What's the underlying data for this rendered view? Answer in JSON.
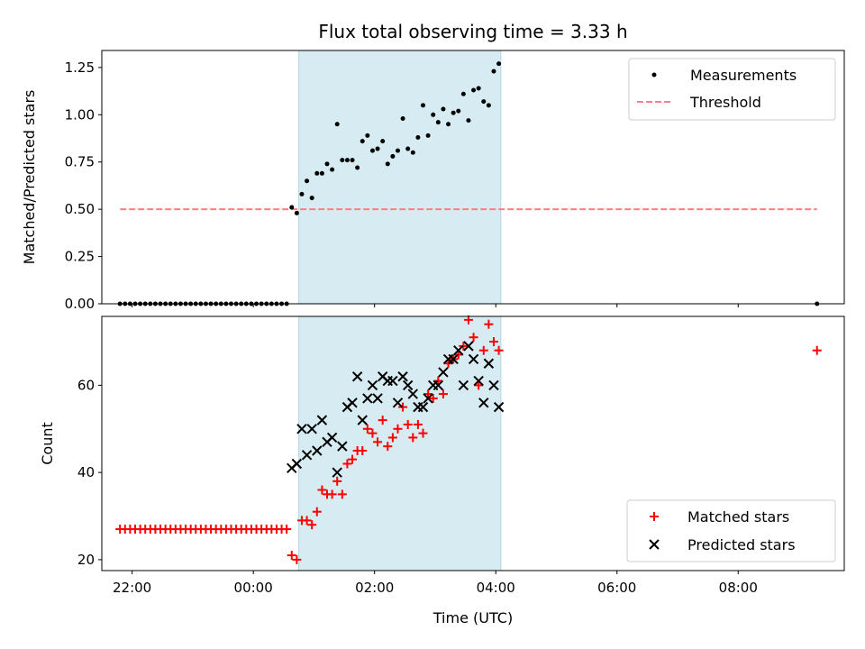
{
  "chart_data": [
    {
      "type": "scatter",
      "title": "Flux total observing time = 3.33 h",
      "xlabel": "",
      "ylabel": "Matched/Predicted stars",
      "xlim": [
        "21:30",
        "09:45"
      ],
      "ylim": [
        0,
        1.34
      ],
      "yticks": [
        0.0,
        0.25,
        0.5,
        0.75,
        1.0,
        1.25
      ],
      "ytick_labels": [
        "0.00",
        "0.25",
        "0.50",
        "0.75",
        "1.00",
        "1.25"
      ],
      "legend_position": "top-right",
      "highlight_span": [
        "00:45",
        "04:05"
      ],
      "series": [
        {
          "name": "Measurements",
          "kind": "scatter",
          "color": "#000000",
          "marker": "dot",
          "x": [
            "21:48",
            "21:53",
            "21:58",
            "22:03",
            "22:08",
            "22:13",
            "22:18",
            "22:23",
            "22:28",
            "22:33",
            "22:38",
            "22:43",
            "22:48",
            "22:53",
            "22:58",
            "23:03",
            "23:08",
            "23:13",
            "23:18",
            "23:23",
            "23:28",
            "23:33",
            "23:38",
            "23:43",
            "23:48",
            "23:53",
            "23:58",
            "00:03",
            "00:08",
            "00:13",
            "00:18",
            "00:23",
            "00:28",
            "00:33",
            "00:38",
            "00:43",
            "00:48",
            "00:53",
            "00:58",
            "01:03",
            "01:08",
            "01:13",
            "01:18",
            "01:23",
            "01:28",
            "01:33",
            "01:38",
            "01:43",
            "01:48",
            "01:53",
            "01:58",
            "02:03",
            "02:08",
            "02:13",
            "02:18",
            "02:23",
            "02:28",
            "02:33",
            "02:38",
            "02:43",
            "02:48",
            "02:53",
            "02:58",
            "03:03",
            "03:08",
            "03:13",
            "03:18",
            "03:23",
            "03:28",
            "03:33",
            "03:38",
            "03:43",
            "03:48",
            "03:53",
            "03:58",
            "04:03",
            "09:18"
          ],
          "y": [
            0,
            0,
            0,
            0,
            0,
            0,
            0,
            0,
            0,
            0,
            0,
            0,
            0,
            0,
            0,
            0,
            0,
            0,
            0,
            0,
            0,
            0,
            0,
            0,
            0,
            0,
            0,
            0,
            0,
            0,
            0,
            0,
            0,
            0,
            0.51,
            0.48,
            0.58,
            0.65,
            0.56,
            0.69,
            0.69,
            0.74,
            0.71,
            0.95,
            0.76,
            0.76,
            0.76,
            0.72,
            0.86,
            0.89,
            0.81,
            0.82,
            0.86,
            0.74,
            0.78,
            0.81,
            0.98,
            0.82,
            0.8,
            0.88,
            1.05,
            0.89,
            1.0,
            0.96,
            1.03,
            0.95,
            1.01,
            1.02,
            1.11,
            0.97,
            1.13,
            1.14,
            1.07,
            1.05,
            1.23,
            1.27,
            0
          ]
        },
        {
          "name": "Threshold",
          "kind": "line",
          "color": "#ff7f7f",
          "style": "dashed",
          "x": [
            "21:48",
            "09:18"
          ],
          "y": [
            0.5,
            0.5
          ]
        }
      ]
    },
    {
      "type": "scatter",
      "title": "",
      "xlabel": "Time (UTC)",
      "ylabel": "Count",
      "xlim": [
        "21:30",
        "09:45"
      ],
      "ylim": [
        17.5,
        75.8
      ],
      "xticks": [
        "22:00",
        "00:00",
        "02:00",
        "04:00",
        "06:00",
        "08:00"
      ],
      "yticks": [
        20,
        40,
        60
      ],
      "ytick_labels": [
        "20",
        "40",
        "60"
      ],
      "legend_position": "bottom-right",
      "highlight_span": [
        "00:45",
        "04:05"
      ],
      "series": [
        {
          "name": "Matched stars",
          "kind": "scatter",
          "color": "#ff0000",
          "marker": "plus",
          "x": [
            "21:48",
            "21:53",
            "21:58",
            "22:03",
            "22:08",
            "22:13",
            "22:18",
            "22:23",
            "22:28",
            "22:33",
            "22:38",
            "22:43",
            "22:48",
            "22:53",
            "22:58",
            "23:03",
            "23:08",
            "23:13",
            "23:18",
            "23:23",
            "23:28",
            "23:33",
            "23:38",
            "23:43",
            "23:48",
            "23:53",
            "23:58",
            "00:03",
            "00:08",
            "00:13",
            "00:18",
            "00:23",
            "00:28",
            "00:33",
            "00:38",
            "00:43",
            "00:48",
            "00:53",
            "00:58",
            "01:03",
            "01:08",
            "01:13",
            "01:18",
            "01:23",
            "01:28",
            "01:33",
            "01:38",
            "01:43",
            "01:48",
            "01:53",
            "01:58",
            "02:03",
            "02:08",
            "02:13",
            "02:18",
            "02:23",
            "02:28",
            "02:33",
            "02:38",
            "02:43",
            "02:48",
            "02:53",
            "02:58",
            "03:03",
            "03:08",
            "03:13",
            "03:18",
            "03:23",
            "03:28",
            "03:33",
            "03:38",
            "03:43",
            "03:48",
            "03:53",
            "03:58",
            "04:03",
            "09:18"
          ],
          "y": [
            27,
            27,
            27,
            27,
            27,
            27,
            27,
            27,
            27,
            27,
            27,
            27,
            27,
            27,
            27,
            27,
            27,
            27,
            27,
            27,
            27,
            27,
            27,
            27,
            27,
            27,
            27,
            27,
            27,
            27,
            27,
            27,
            27,
            27,
            21,
            20,
            29,
            29,
            28,
            31,
            36,
            35,
            35,
            38,
            35,
            42,
            43,
            45,
            45,
            50,
            49,
            47,
            52,
            46,
            48,
            50,
            55,
            51,
            48,
            51,
            49,
            58,
            57,
            61,
            58,
            65,
            66,
            67,
            69,
            75,
            71,
            60,
            68,
            74,
            70,
            68,
            68
          ]
        },
        {
          "name": "Predicted stars",
          "kind": "scatter",
          "color": "#000000",
          "marker": "x",
          "x": [
            "00:38",
            "00:43",
            "00:48",
            "00:53",
            "00:58",
            "01:03",
            "01:08",
            "01:13",
            "01:18",
            "01:23",
            "01:28",
            "01:33",
            "01:38",
            "01:43",
            "01:48",
            "01:53",
            "01:58",
            "02:03",
            "02:08",
            "02:13",
            "02:18",
            "02:23",
            "02:28",
            "02:33",
            "02:38",
            "02:43",
            "02:48",
            "02:53",
            "02:58",
            "03:03",
            "03:08",
            "03:13",
            "03:18",
            "03:23",
            "03:28",
            "03:33",
            "03:38",
            "03:43",
            "03:48",
            "03:53",
            "03:58",
            "04:03"
          ],
          "y": [
            41,
            42,
            50,
            44,
            50,
            45,
            52,
            47,
            48,
            40,
            46,
            55,
            56,
            62,
            52,
            57,
            60,
            57,
            62,
            61,
            61,
            56,
            62,
            60,
            58,
            55,
            55,
            57,
            60,
            60,
            63,
            66,
            66,
            68,
            60,
            69,
            66,
            61,
            56,
            65,
            60,
            55
          ]
        }
      ]
    }
  ]
}
